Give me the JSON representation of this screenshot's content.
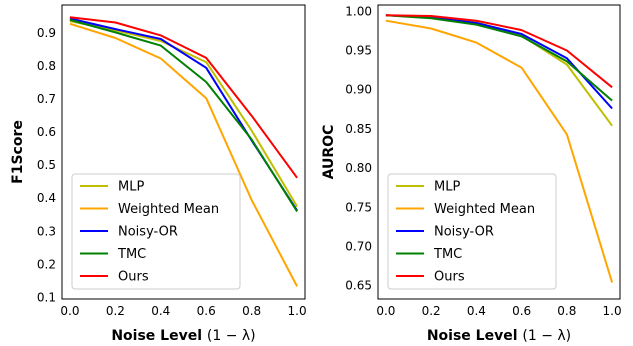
{
  "chart_data": [
    {
      "type": "line",
      "title": "",
      "xlabel_main": "Noise Level",
      "xlabel_math": "(1 − λ)",
      "ylabel": "F1Score",
      "x": [
        0.0,
        0.2,
        0.4,
        0.6,
        0.8,
        1.0
      ],
      "xlim": [
        -0.035,
        1.035
      ],
      "ylim": [
        0.095,
        0.985
      ],
      "xticks": [
        0.0,
        0.2,
        0.4,
        0.6,
        0.8,
        1.0
      ],
      "xtick_labels": [
        "0.0",
        "0.2",
        "0.4",
        "0.6",
        "0.8",
        "1.0"
      ],
      "yticks": [
        0.1,
        0.2,
        0.3,
        0.4,
        0.5,
        0.6,
        0.7,
        0.8,
        0.9
      ],
      "ytick_labels": [
        "0.1",
        "0.2",
        "0.3",
        "0.4",
        "0.5",
        "0.6",
        "0.7",
        "0.8",
        "0.9"
      ],
      "grid": false,
      "legend_position": "lower-left",
      "series": [
        {
          "name": "MLP",
          "color": "#bfbf00",
          "values": [
            0.936,
            0.908,
            0.876,
            0.812,
            0.605,
            0.375
          ]
        },
        {
          "name": "Weighted Mean",
          "color": "#ffa500",
          "values": [
            0.928,
            0.885,
            0.823,
            0.703,
            0.395,
            0.133
          ]
        },
        {
          "name": "Noisy-OR",
          "color": "#0000ff",
          "values": [
            0.944,
            0.912,
            0.882,
            0.795,
            0.575,
            0.363
          ]
        },
        {
          "name": "TMC",
          "color": "#008000",
          "values": [
            0.94,
            0.902,
            0.862,
            0.752,
            0.578,
            0.36
          ]
        },
        {
          "name": "Ours",
          "color": "#ff0000",
          "values": [
            0.948,
            0.932,
            0.893,
            0.825,
            0.65,
            0.462
          ]
        }
      ]
    },
    {
      "type": "line",
      "title": "",
      "xlabel_main": "Noise Level",
      "xlabel_math": "(1 − λ)",
      "ylabel": "AUROC",
      "x": [
        0.0,
        0.2,
        0.4,
        0.6,
        0.8,
        1.0
      ],
      "xlim": [
        -0.035,
        1.035
      ],
      "ylim": [
        0.633,
        1.008
      ],
      "xticks": [
        0.0,
        0.2,
        0.4,
        0.6,
        0.8,
        1.0
      ],
      "xtick_labels": [
        "0.0",
        "0.2",
        "0.4",
        "0.6",
        "0.8",
        "1.0"
      ],
      "yticks": [
        0.65,
        0.7,
        0.75,
        0.8,
        0.85,
        0.9,
        0.95,
        1.0
      ],
      "ytick_labels": [
        "0.65",
        "0.70",
        "0.75",
        "0.80",
        "0.85",
        "0.90",
        "0.95",
        "1.00"
      ],
      "grid": false,
      "legend_position": "lower-left",
      "series": [
        {
          "name": "MLP",
          "color": "#bfbf00",
          "values": [
            0.995,
            0.993,
            0.986,
            0.969,
            0.932,
            0.854
          ]
        },
        {
          "name": "Weighted Mean",
          "color": "#ffa500",
          "values": [
            0.988,
            0.978,
            0.96,
            0.928,
            0.843,
            0.654
          ]
        },
        {
          "name": "Noisy-OR",
          "color": "#0000ff",
          "values": [
            0.995,
            0.992,
            0.985,
            0.971,
            0.94,
            0.876
          ]
        },
        {
          "name": "TMC",
          "color": "#008000",
          "values": [
            0.995,
            0.991,
            0.983,
            0.968,
            0.936,
            0.886
          ]
        },
        {
          "name": "Ours",
          "color": "#ff0000",
          "values": [
            0.995,
            0.994,
            0.988,
            0.976,
            0.95,
            0.903
          ]
        }
      ]
    }
  ]
}
